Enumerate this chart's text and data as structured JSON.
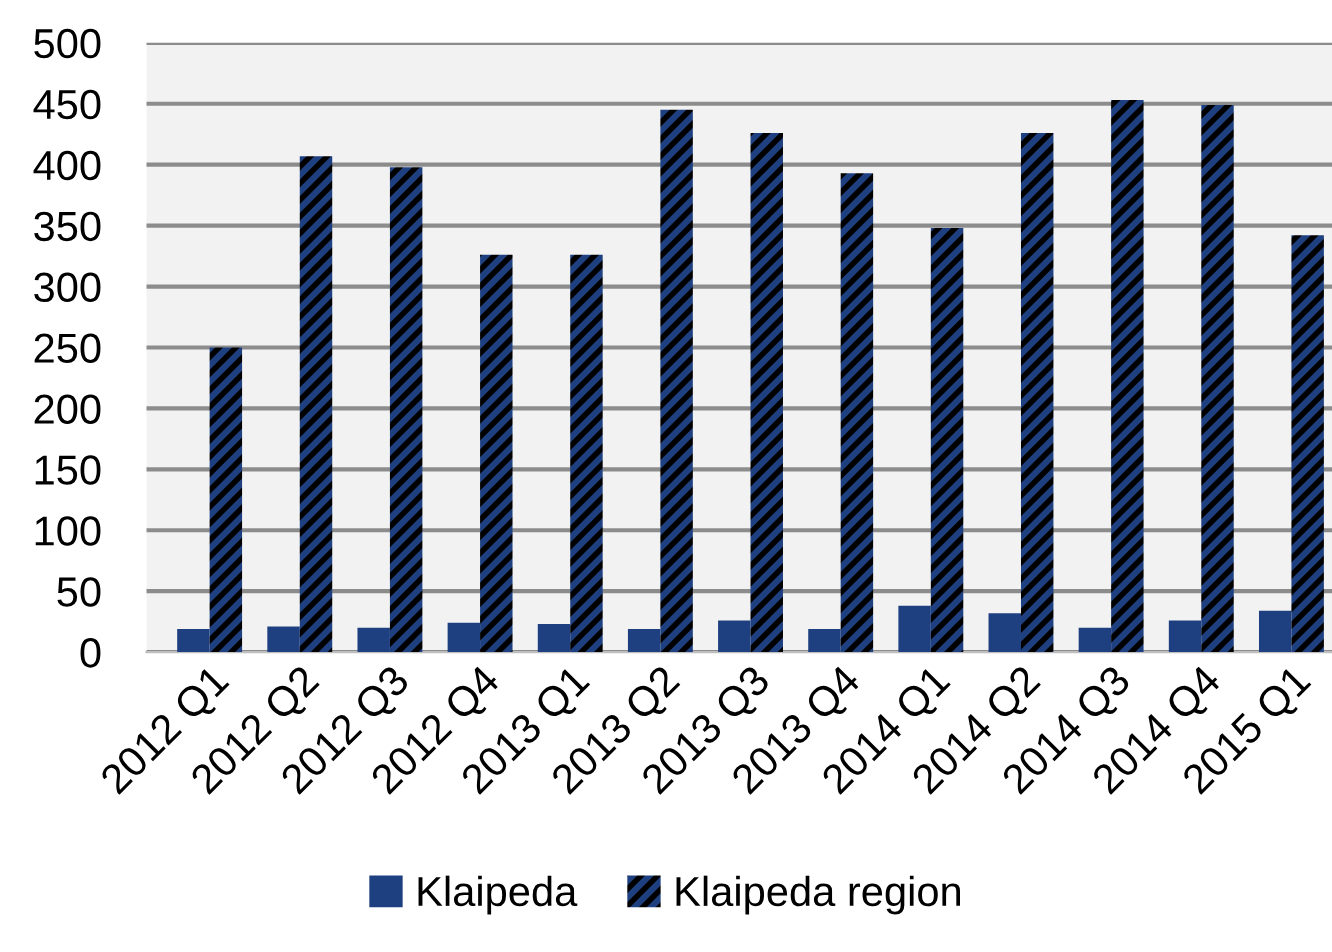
{
  "chart_data": {
    "type": "bar",
    "categories": [
      "2012 Q1",
      "2012 Q2",
      "2012 Q3",
      "2012 Q4",
      "2013 Q1",
      "2013 Q2",
      "2013 Q3",
      "2013 Q4",
      "2014 Q1",
      "2014 Q2",
      "2014 Q3",
      "2014 Q4",
      "2015 Q1"
    ],
    "series": [
      {
        "name": "Klaipeda",
        "color": "#1f4080",
        "values": [
          19,
          21,
          20,
          24,
          23,
          19,
          26,
          19,
          38,
          32,
          20,
          26,
          34
        ]
      },
      {
        "name": "Klaipeda region",
        "color": "#1f4080",
        "values": [
          250,
          407,
          398,
          326,
          326,
          445,
          426,
          393,
          348,
          426,
          453,
          449,
          342
        ]
      }
    ],
    "ylim": [
      0,
      500
    ],
    "yticks": [
      0,
      50,
      100,
      150,
      200,
      250,
      300,
      350,
      400,
      450,
      500
    ],
    "grid": "y",
    "legend": "bottom"
  }
}
